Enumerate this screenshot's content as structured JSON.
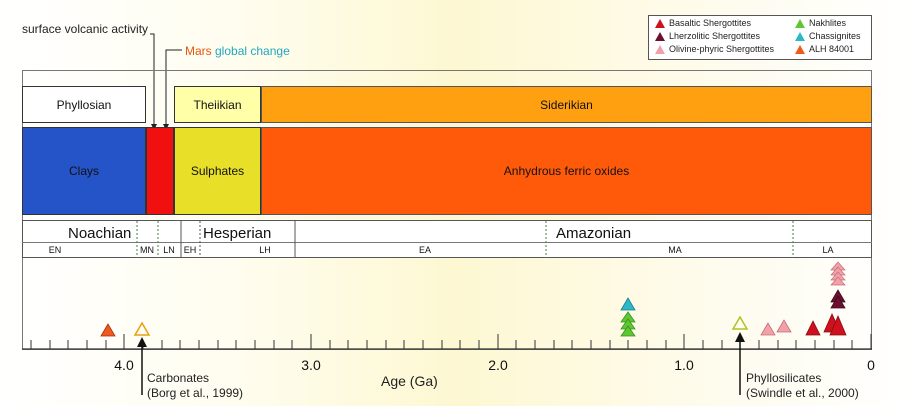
{
  "annotations": {
    "surface_volcanic": "surface volcanic activity",
    "mars_word": "Mars",
    "global_change": " global change",
    "carbonates_1": "Carbonates",
    "carbonates_2": "(Borg et al., 1999)",
    "phyllo_1": "Phyllosilicates",
    "phyllo_2": "(Swindle et al., 2000)"
  },
  "eras": {
    "phyllosian": "Phyllosian",
    "theiikian": "Theiikian",
    "siderikian": "Siderikian"
  },
  "minerals": {
    "clays": "Clays",
    "sulphates": "Sulphates",
    "oxides": "Anhydrous ferric oxides"
  },
  "periods": {
    "noachian": "Noachian",
    "hesperian": "Hesperian",
    "amazonian": "Amazonian",
    "sub": [
      "EN",
      "MN",
      "LN",
      "EH",
      "LH",
      "EA",
      "MA",
      "LA"
    ]
  },
  "axis": {
    "label": "Age (Ga)",
    "ticks": [
      "4.0",
      "3.0",
      "2.0",
      "1.0",
      "0"
    ]
  },
  "legend": [
    {
      "label": "Basaltic Shergottites",
      "color": "#d0101e"
    },
    {
      "label": "Lherzolitic Shergottites",
      "color": "#6b1030"
    },
    {
      "label": "Olivine-phyric Shergottites",
      "color": "#f3a0a8"
    },
    {
      "label": "Nakhlites",
      "color": "#5ec832"
    },
    {
      "label": "Chassignites",
      "color": "#2cb8c8"
    },
    {
      "label": "ALH 84001",
      "color": "#f05a1e"
    }
  ],
  "colors": {
    "clays": "#2553c8",
    "red_block": "#f01010",
    "sulphates": "#e8e028",
    "oxides": "#ff5a0a",
    "siderikian": "#ffa010",
    "theiikian": "#ffffa8",
    "mars_orange": "#e8550a",
    "global_change_cyan": "#20a8c0"
  }
}
